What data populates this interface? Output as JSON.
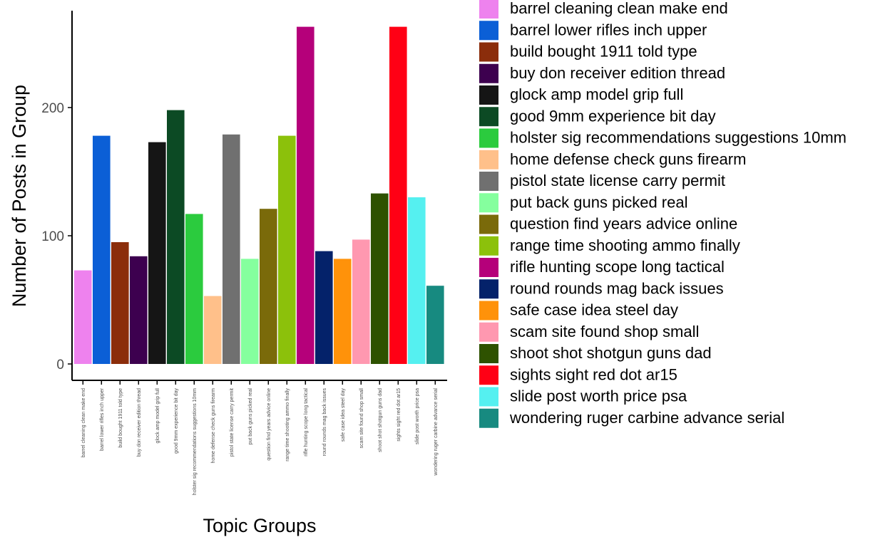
{
  "chart_data": {
    "type": "bar",
    "xlabel": "Topic Groups",
    "ylabel": "Number of Posts in Group",
    "ylim": [
      0,
      275
    ],
    "yticks": [
      0,
      100,
      200
    ],
    "grid": false,
    "legend_position": "right",
    "categories": [
      "barrel cleaning clean make end",
      "barrel lower rifles inch upper",
      "build bought 1911 told type",
      "buy don receiver edition thread",
      "glock amp model grip full",
      "good 9mm experience bit day",
      "holster sig recommendations suggestions 10mm",
      "home defense check guns firearm",
      "pistol state license carry permit",
      "put back guns picked real",
      "question find years advice online",
      "range time shooting ammo finally",
      "rifle hunting scope long tactical",
      "round rounds mag back issues",
      "safe case idea steel day",
      "scam site found shop small",
      "shoot shot shotgun guns dad",
      "sights sight red dot ar15",
      "slide post worth price psa",
      "wondering ruger carbine advance serial"
    ],
    "values": [
      73,
      178,
      95,
      84,
      173,
      198,
      117,
      53,
      179,
      82,
      121,
      178,
      263,
      88,
      82,
      97,
      133,
      263,
      130,
      61
    ],
    "colors": [
      "#EE82EE",
      "#0B5FD6",
      "#8B2D0B",
      "#3D004F",
      "#151515",
      "#0C4A24",
      "#2BCB3E",
      "#FFC08A",
      "#707070",
      "#85FF9E",
      "#7A6A0A",
      "#8CC10B",
      "#B5007A",
      "#04226A",
      "#FF920A",
      "#FF98B0",
      "#2E5200",
      "#FF0015",
      "#55F0F0",
      "#178A80"
    ]
  }
}
